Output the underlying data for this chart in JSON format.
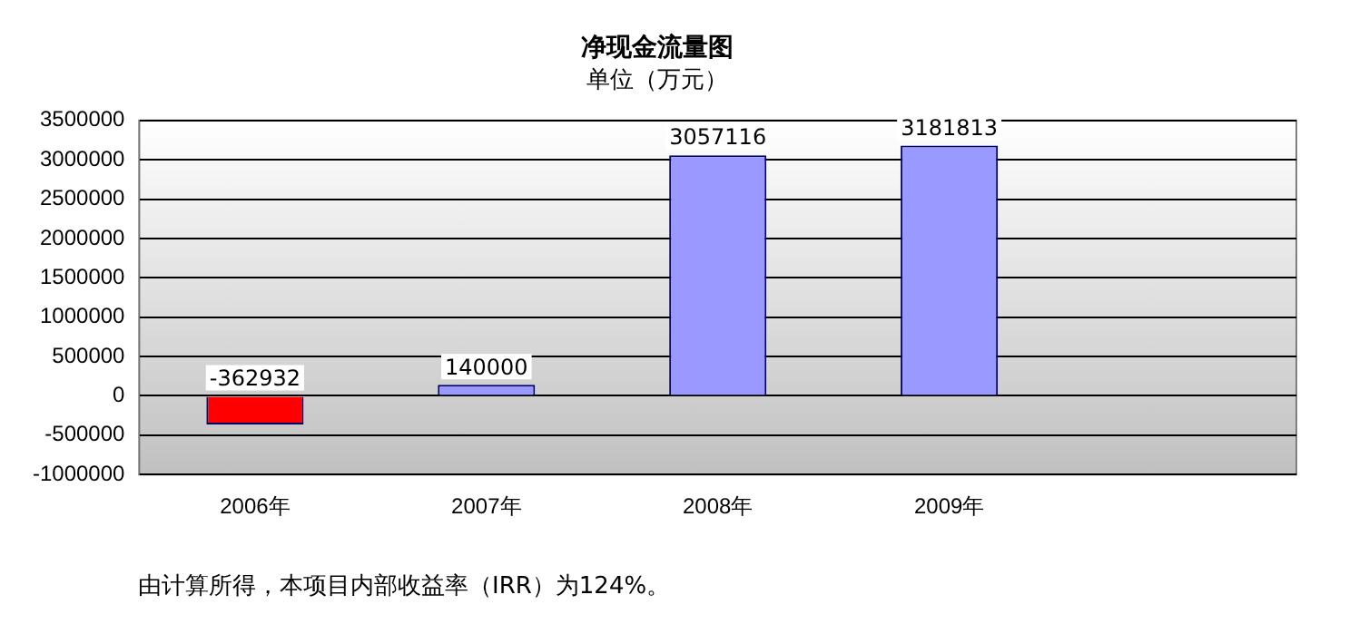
{
  "chart_data": {
    "type": "bar",
    "title": "净现金流量图",
    "subtitle": "单位（万元）",
    "categories": [
      "2006年",
      "2007年",
      "2008年",
      "2009年",
      null
    ],
    "values": [
      -362932,
      140000,
      3057116,
      3181813,
      null
    ],
    "colors": [
      "#ff0000",
      "#9999ff",
      "#9999ff",
      "#9999ff",
      null
    ],
    "ylim": [
      -1000000,
      3500000
    ],
    "yticks": [
      -1000000,
      -500000,
      0,
      500000,
      1000000,
      1500000,
      2000000,
      2500000,
      3000000,
      3500000
    ],
    "grid": "y",
    "data_labels": true,
    "legend": false,
    "annotations": [
      "由计算所得，本项目内部收益率（IRR）为124%。"
    ]
  }
}
